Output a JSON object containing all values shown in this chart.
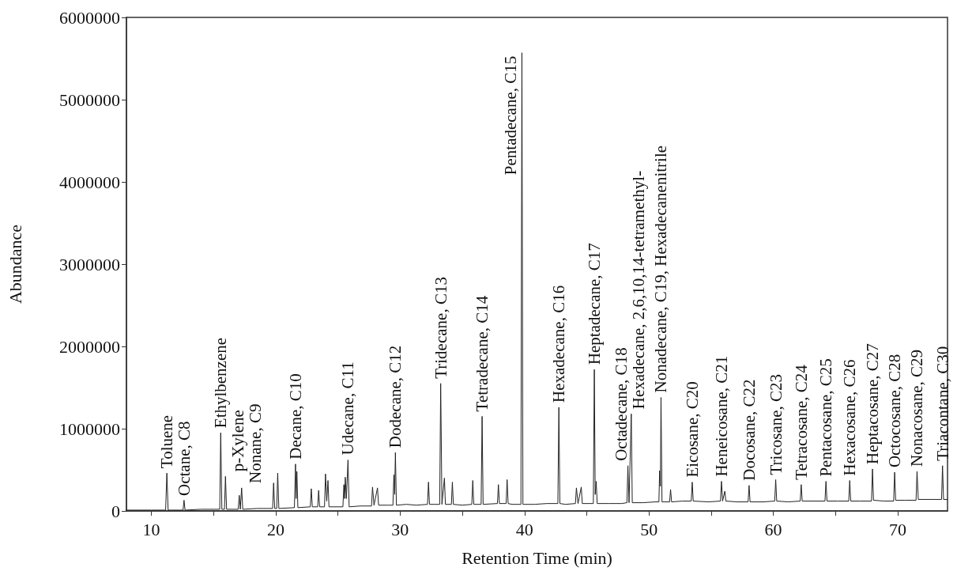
{
  "chart_data": {
    "type": "line",
    "xlabel": "Retention Time (min)",
    "ylabel": "Abundance",
    "x": [
      8,
      9,
      10,
      11.15,
      11.25,
      11.35,
      12.55,
      12.63,
      12.71,
      14,
      15.5,
      15.58,
      15.67,
      15.88,
      15.96,
      16.05,
      16.98,
      17.07,
      17.15,
      17.26,
      17.35,
      18.5,
      19.75,
      19.83,
      19.92,
      20.08,
      20.16,
      20.25,
      21.5,
      21.59,
      21.64,
      21.7,
      21.78,
      22.78,
      22.86,
      22.94,
      23.37,
      23.45,
      23.53,
      23.92,
      24,
      24.1,
      24.2,
      24.28,
      25.4,
      25.48,
      25.54,
      25.59,
      25.68,
      25.81,
      25.9,
      26.8,
      27.7,
      27.78,
      27.9,
      28.18,
      28.27,
      29,
      29.42,
      29.5,
      29.56,
      29.62,
      29.7,
      30.5,
      31.3,
      32.2,
      32.28,
      32.36,
      33.18,
      33.26,
      33.36,
      33.56,
      33.64,
      34.12,
      34.2,
      34.28,
      35,
      35.76,
      35.84,
      35.92,
      36.51,
      36.59,
      36.67,
      37.82,
      37.9,
      37.98,
      38.52,
      38.6,
      38.68,
      39,
      39.71,
      39.79,
      39.87,
      40.8,
      41.8,
      42.68,
      42.76,
      42.84,
      43.3,
      44.09,
      44.17,
      44.3,
      44.56,
      44.64,
      45.53,
      45.61,
      45.68,
      45.76,
      45.84,
      46.8,
      47.8,
      48.23,
      48.31,
      48.4,
      48.58,
      48.66,
      49.5,
      50.5,
      50.8,
      50.86,
      50.92,
      50.97,
      51.05,
      51.66,
      51.74,
      51.82,
      52.7,
      53.4,
      53.48,
      53.56,
      54.8,
      55.75,
      55.83,
      55.92,
      56.1,
      56.18,
      57.1,
      57.97,
      58.05,
      58.13,
      59.2,
      60.11,
      60.19,
      60.27,
      61.2,
      62.16,
      62.24,
      62.32,
      63.2,
      64.15,
      64.23,
      64.31,
      65.2,
      66.06,
      66.14,
      66.22,
      67,
      67.89,
      67.97,
      68.05,
      68.9,
      69.67,
      69.75,
      69.83,
      70.6,
      71.47,
      71.55,
      71.65,
      72.6,
      73.52,
      73.6,
      73.68,
      74
    ],
    "values": [
      10000,
      10000,
      10000,
      10000,
      460000,
      10000,
      10000,
      130000,
      10000,
      20000,
      20000,
      950000,
      20000,
      20000,
      420000,
      20000,
      20000,
      190000,
      20000,
      280000,
      20000,
      30000,
      30000,
      340000,
      30000,
      30000,
      460000,
      30000,
      40000,
      570000,
      150000,
      480000,
      40000,
      50000,
      270000,
      50000,
      50000,
      250000,
      50000,
      50000,
      450000,
      120000,
      370000,
      50000,
      50000,
      320000,
      150000,
      410000,
      150000,
      620000,
      50000,
      60000,
      60000,
      290000,
      70000,
      280000,
      70000,
      70000,
      70000,
      440000,
      200000,
      710000,
      70000,
      80000,
      70000,
      80000,
      350000,
      80000,
      80000,
      1550000,
      80000,
      400000,
      80000,
      80000,
      350000,
      80000,
      70000,
      80000,
      370000,
      80000,
      80000,
      1150000,
      80000,
      90000,
      320000,
      90000,
      90000,
      380000,
      90000,
      80000,
      80000,
      5570000,
      80000,
      80000,
      90000,
      90000,
      1260000,
      90000,
      80000,
      90000,
      280000,
      90000,
      290000,
      90000,
      90000,
      1720000,
      200000,
      360000,
      90000,
      90000,
      90000,
      100000,
      550000,
      100000,
      1180000,
      100000,
      100000,
      110000,
      110000,
      490000,
      300000,
      1380000,
      110000,
      110000,
      260000,
      110000,
      120000,
      120000,
      350000,
      120000,
      110000,
      120000,
      360000,
      120000,
      240000,
      120000,
      110000,
      110000,
      310000,
      110000,
      110000,
      120000,
      380000,
      120000,
      110000,
      120000,
      320000,
      120000,
      120000,
      120000,
      360000,
      120000,
      120000,
      120000,
      370000,
      120000,
      120000,
      120000,
      510000,
      130000,
      120000,
      120000,
      470000,
      130000,
      130000,
      130000,
      480000,
      140000,
      140000,
      140000,
      550000,
      140000,
      140000
    ],
    "color": "#222222",
    "marker": "none",
    "xlim": [
      8,
      74
    ],
    "xticks": [
      10,
      {
        "value": 15,
        "label": null
      },
      20,
      {
        "value": 25,
        "label": null
      },
      30,
      {
        "value": 35,
        "label": null
      },
      40,
      {
        "value": 45,
        "label": null
      },
      50,
      {
        "value": 55,
        "label": null
      },
      60,
      {
        "value": 65,
        "label": null
      },
      70
    ],
    "ylim": [
      0,
      6000000
    ],
    "yticks": [
      0,
      1000000,
      2000000,
      3000000,
      4000000,
      5000000,
      6000000
    ],
    "grid": false,
    "annotations": [
      {
        "text": "Toluene",
        "x": 11.25,
        "y": 460000
      },
      {
        "text": "Octane, C8",
        "x": 12.63,
        "y": 125000
      },
      {
        "text": "Ethylbenzene",
        "x": 15.58,
        "y": 950000
      },
      {
        "text": "p-Xylene",
        "x": 15.96,
        "y": 420000
      },
      {
        "text": "Nonane, C9",
        "x": 17.26,
        "y": 280000
      },
      {
        "text": "Decane, C10",
        "x": 21.59,
        "y": 570000
      },
      {
        "text": "Udecane, C11",
        "x": 25.81,
        "y": 620000
      },
      {
        "text": "Dodecane, C12",
        "x": 29.62,
        "y": 710000
      },
      {
        "text": "Tridecane, C13",
        "x": 33.26,
        "y": 1550000
      },
      {
        "text": "Tetradecane, C14",
        "x": 36.59,
        "y": 1150000
      },
      {
        "text": "Pentadecane, C15",
        "x": 39.79,
        "y": 5570000
      },
      {
        "text": "Hexadecane, C16",
        "x": 42.76,
        "y": 1260000
      },
      {
        "text": "Heptadecane, C17",
        "x": 45.61,
        "y": 1720000
      },
      {
        "text": "Octadecane, C18",
        "x": 48.31,
        "y": 550000
      },
      {
        "text": "Hexadecane, 2,6,10,14-tetramethyl-",
        "x": 48.58,
        "y": 1180000
      },
      {
        "text": "Nonadecane, C19, Hexadecanenitrile",
        "x": 50.97,
        "y": 1380000
      },
      {
        "text": "Eicosane, C20",
        "x": 53.48,
        "y": 350000
      },
      {
        "text": "Heneicosane, C21",
        "x": 55.83,
        "y": 360000
      },
      {
        "text": "Docosane, C22",
        "x": 58.05,
        "y": 310000
      },
      {
        "text": "Tricosane, C23",
        "x": 60.19,
        "y": 380000
      },
      {
        "text": "Tetracosane, C24",
        "x": 62.24,
        "y": 320000
      },
      {
        "text": "Pentacosane, C25",
        "x": 64.23,
        "y": 360000
      },
      {
        "text": "Hexacosane, C26",
        "x": 66.14,
        "y": 370000
      },
      {
        "text": "Heptacosane, C27",
        "x": 67.97,
        "y": 510000
      },
      {
        "text": "Octocosane, C28",
        "x": 69.75,
        "y": 470000
      },
      {
        "text": "Nonacosane, C29",
        "x": 71.55,
        "y": 480000
      },
      {
        "text": "Triacontane, C30",
        "x": 73.6,
        "y": 550000
      }
    ]
  }
}
